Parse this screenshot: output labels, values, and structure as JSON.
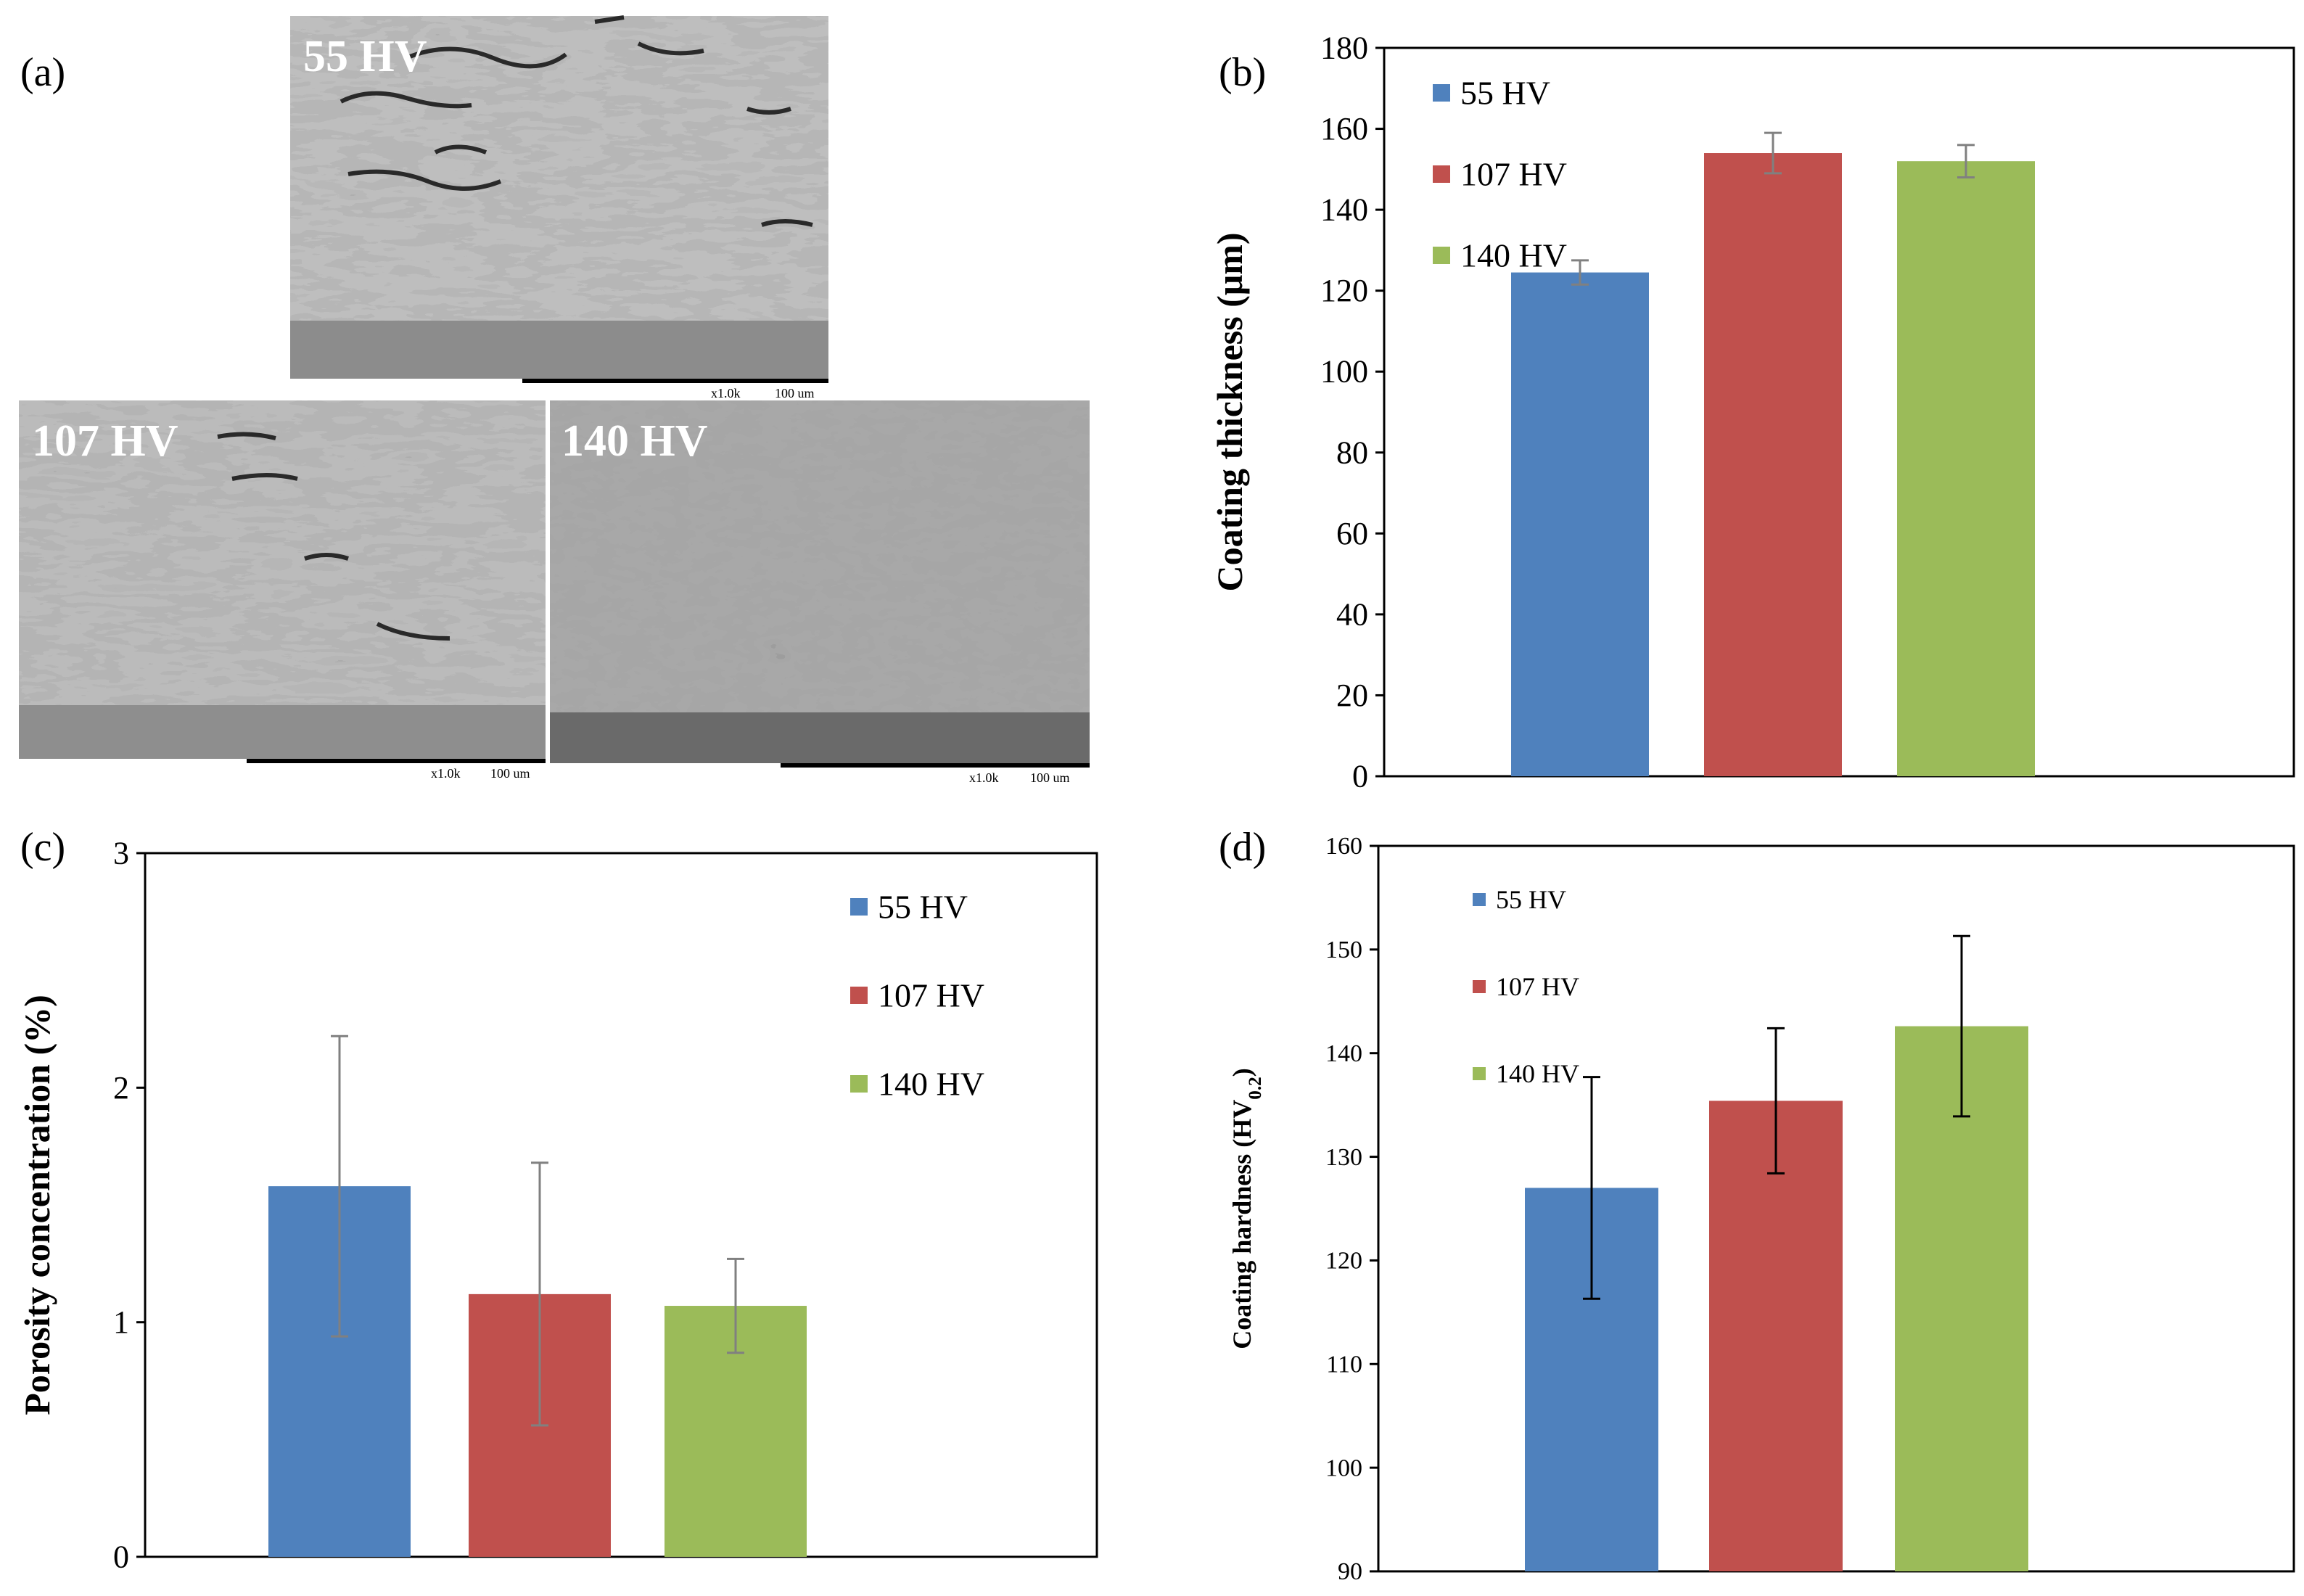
{
  "panel_a": {
    "label": "(a)",
    "images": [
      {
        "caption": "55 HV",
        "scale_mag": "x1.0k",
        "scale_len": "100 um"
      },
      {
        "caption": "107 HV",
        "scale_mag": "x1.0k",
        "scale_len": "100 um"
      },
      {
        "caption": "140 HV",
        "scale_mag": "x1.0k",
        "scale_len": "100 um"
      }
    ]
  },
  "colors": {
    "s55": "#4F81BD",
    "s107": "#C0504D",
    "s140": "#9BBB59",
    "axis": "#000000",
    "err_grey": "#808080",
    "err_black": "#000000"
  },
  "chart_data": [
    {
      "panel": "(b)",
      "type": "bar",
      "categories": [
        "55 HV",
        "107 HV",
        "140 HV"
      ],
      "values": [
        124.5,
        154,
        152
      ],
      "errors": [
        3,
        5,
        4
      ],
      "ylabel": "Coating thickness (μm)",
      "ylim": [
        0,
        180
      ],
      "yticks": [
        0,
        20,
        40,
        60,
        80,
        100,
        120,
        140,
        160,
        180
      ],
      "legend": [
        "55 HV",
        "107 HV",
        "140 HV"
      ],
      "legend_position": "top-left",
      "grid": false
    },
    {
      "panel": "(c)",
      "type": "bar",
      "categories": [
        "55 HV",
        "107 HV",
        "140 HV"
      ],
      "values": [
        1.58,
        1.12,
        1.07
      ],
      "errors": [
        0.64,
        0.56,
        0.2
      ],
      "ylabel": "Porosity concentration (%)",
      "ylim": [
        0,
        3
      ],
      "yticks": [
        0,
        1,
        2,
        3
      ],
      "legend": [
        "55 HV",
        "107 HV",
        "140 HV"
      ],
      "legend_position": "top-right",
      "grid": false
    },
    {
      "panel": "(d)",
      "type": "bar",
      "categories": [
        "55 HV",
        "107 HV",
        "140 HV"
      ],
      "values": [
        127,
        135.4,
        142.6
      ],
      "errors": [
        10.7,
        7,
        8.7
      ],
      "ylabel": "Coating hardness (HV",
      "ylabel_sub": "0.2",
      "ylabel_end": ")",
      "ylim": [
        90,
        160
      ],
      "yticks": [
        90,
        100,
        110,
        120,
        130,
        140,
        150,
        160
      ],
      "legend": [
        "55 HV",
        "107 HV",
        "140 HV"
      ],
      "legend_position": "top-left",
      "grid": false
    }
  ]
}
